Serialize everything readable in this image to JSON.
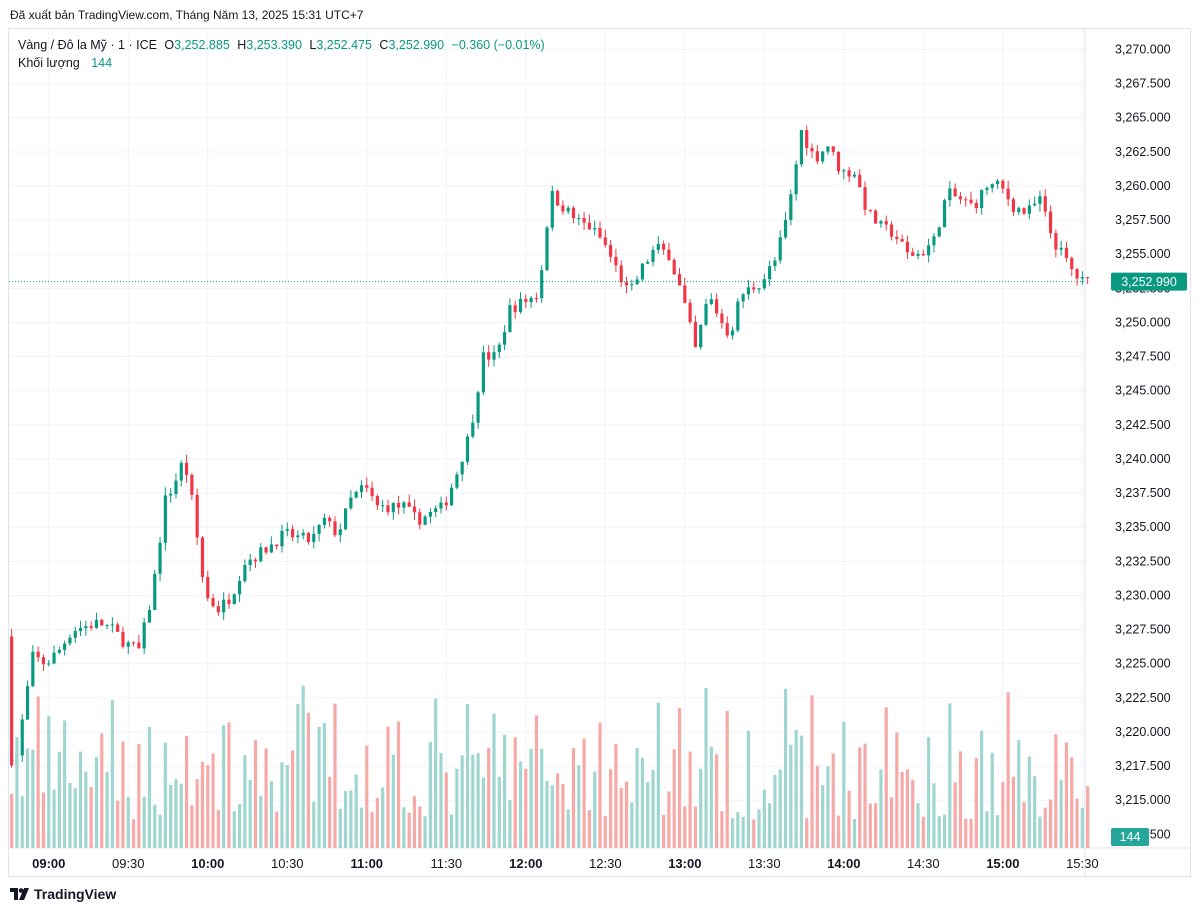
{
  "header": {
    "published": "Đã xuất bản TradingView.com, Tháng Năm 13, 2025 15:31 UTC+7"
  },
  "legend": {
    "symbol": "Vàng / Đô la Mỹ · 1 · ICE",
    "o_label": "O",
    "o_value": "3,252.885",
    "h_label": "H",
    "h_value": "3,253.390",
    "l_label": "L",
    "l_value": "3,252.475",
    "c_label": "C",
    "c_value": "3,252.990",
    "change": "−0.360 (−0.01%)",
    "volume_label": "Khối lượng",
    "volume_value": "144"
  },
  "colors": {
    "up": "#089981",
    "down": "#f23645",
    "vol_up": "#9fd6cf",
    "vol_down": "#f7a9a8",
    "grid": "#f0f3fa",
    "axis_text": "#131722",
    "last_line": "#089981"
  },
  "footer": {
    "brand": "TradingView",
    "logo_icon": "tradingview-logo-icon"
  },
  "chart_data": {
    "type": "candlestick",
    "title": "Vàng / Đô la Mỹ · 1 · ICE",
    "interval": "1 minute",
    "x_ticks": [
      "09:00",
      "09:30",
      "10:00",
      "10:30",
      "11:00",
      "11:30",
      "12:00",
      "12:30",
      "13:00",
      "13:30",
      "14:00",
      "14:30",
      "15:00",
      "15:30"
    ],
    "x_ticks_bold": [
      "09:00",
      "10:00",
      "11:00",
      "12:00",
      "13:00",
      "14:00",
      "15:00"
    ],
    "y_ticks": [
      "3,270.000",
      "3,267.500",
      "3,265.000",
      "3,262.500",
      "3,260.000",
      "3,257.500",
      "3,255.000",
      "3,252.500",
      "3,250.000",
      "3,247.500",
      "3,245.000",
      "3,242.500",
      "3,240.000",
      "3,237.500",
      "3,235.000",
      "3,232.500",
      "3,230.000",
      "3,227.500",
      "3,225.000",
      "3,222.500",
      "3,220.000",
      "3,217.500",
      "3,215.000",
      "3,212.500"
    ],
    "ylim": [
      3211.5,
      3271.5
    ],
    "time_start": "08:45",
    "time_end": "15:31",
    "last_price": 3252.99,
    "last_price_label": "3,252.990",
    "last_volume_label": "144",
    "price_path": [
      [
        "08:45",
        3227.0
      ],
      [
        "08:47",
        3218.0
      ],
      [
        "08:48",
        3217.0
      ],
      [
        "08:52",
        3222.0
      ],
      [
        "08:55",
        3225.5
      ],
      [
        "09:00",
        3225.0
      ],
      [
        "09:05",
        3226.0
      ],
      [
        "09:10",
        3227.5
      ],
      [
        "09:20",
        3228.0
      ],
      [
        "09:25",
        3227.5
      ],
      [
        "09:30",
        3226.5
      ],
      [
        "09:35",
        3226.0
      ],
      [
        "09:40",
        3230.0
      ],
      [
        "09:45",
        3237.0
      ],
      [
        "09:48",
        3238.0
      ],
      [
        "09:52",
        3240.0
      ],
      [
        "09:55",
        3237.0
      ],
      [
        "10:00",
        3230.0
      ],
      [
        "10:05",
        3229.0
      ],
      [
        "10:10",
        3230.0
      ],
      [
        "10:15",
        3232.5
      ],
      [
        "10:20",
        3233.0
      ],
      [
        "10:30",
        3234.5
      ],
      [
        "10:40",
        3234.0
      ],
      [
        "10:45",
        3235.5
      ],
      [
        "10:50",
        3234.5
      ],
      [
        "10:55",
        3237.0
      ],
      [
        "11:00",
        3238.0
      ],
      [
        "11:05",
        3236.5
      ],
      [
        "11:15",
        3236.5
      ],
      [
        "11:20",
        3235.5
      ],
      [
        "11:25",
        3236.0
      ],
      [
        "11:30",
        3236.5
      ],
      [
        "11:35",
        3239.0
      ],
      [
        "11:40",
        3242.0
      ],
      [
        "11:45",
        3247.5
      ],
      [
        "11:50",
        3247.5
      ],
      [
        "11:55",
        3251.0
      ],
      [
        "12:00",
        3251.5
      ],
      [
        "12:05",
        3252.0
      ],
      [
        "12:08",
        3255.0
      ],
      [
        "12:10",
        3259.5
      ],
      [
        "12:15",
        3258.5
      ],
      [
        "12:20",
        3257.5
      ],
      [
        "12:25",
        3257.0
      ],
      [
        "12:30",
        3256.0
      ],
      [
        "12:35",
        3254.0
      ],
      [
        "12:40",
        3252.0
      ],
      [
        "12:45",
        3254.0
      ],
      [
        "12:50",
        3255.5
      ],
      [
        "12:55",
        3255.0
      ],
      [
        "13:00",
        3252.0
      ],
      [
        "13:05",
        3248.0
      ],
      [
        "13:10",
        3252.0
      ],
      [
        "13:15",
        3250.0
      ],
      [
        "13:18",
        3249.0
      ],
      [
        "13:22",
        3252.0
      ],
      [
        "13:30",
        3253.0
      ],
      [
        "13:35",
        3254.5
      ],
      [
        "13:40",
        3258.0
      ],
      [
        "13:45",
        3264.0
      ],
      [
        "13:50",
        3262.0
      ],
      [
        "13:55",
        3263.0
      ],
      [
        "14:00",
        3261.0
      ],
      [
        "14:05",
        3261.0
      ],
      [
        "14:10",
        3258.0
      ],
      [
        "14:15",
        3257.0
      ],
      [
        "14:20",
        3256.5
      ],
      [
        "14:25",
        3255.0
      ],
      [
        "14:30",
        3255.0
      ],
      [
        "14:35",
        3256.0
      ],
      [
        "14:40",
        3259.5
      ],
      [
        "14:45",
        3259.0
      ],
      [
        "14:50",
        3258.5
      ],
      [
        "14:55",
        3260.0
      ],
      [
        "15:00",
        3260.0
      ],
      [
        "15:05",
        3258.5
      ],
      [
        "15:10",
        3258.0
      ],
      [
        "15:15",
        3259.0
      ],
      [
        "15:20",
        3256.0
      ],
      [
        "15:25",
        3254.5
      ],
      [
        "15:28",
        3253.5
      ],
      [
        "15:31",
        3252.99
      ]
    ],
    "volume_range": [
      30,
      180
    ]
  }
}
